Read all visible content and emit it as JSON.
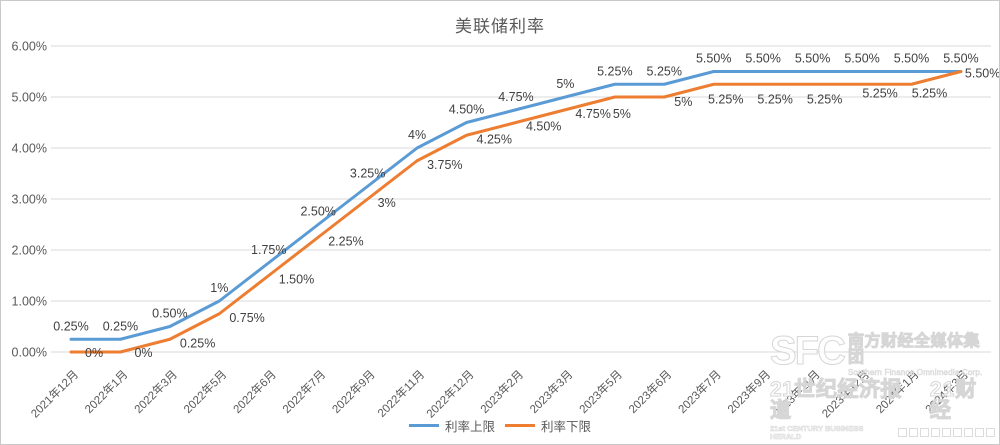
{
  "chart_data": {
    "type": "line",
    "title": "美联储利率",
    "categories": [
      "2021年12月",
      "2022年1月",
      "2022年3月",
      "2022年5月",
      "2022年6月",
      "2022年7月",
      "2022年9月",
      "2022年11月",
      "2022年12月",
      "2023年2月",
      "2023年3月",
      "2023年5月",
      "2023年6月",
      "2023年7月",
      "2023年9月",
      "2023年11月",
      "2023年12月",
      "2024年1月",
      "2024年3月"
    ],
    "series": [
      {
        "name": "利率上限",
        "color": "#5b9bd5",
        "values": [
          0.25,
          0.25,
          0.5,
          1,
          1.75,
          2.5,
          3.25,
          4,
          4.5,
          4.75,
          5,
          5.25,
          5.25,
          5.5,
          5.5,
          5.5,
          5.5,
          5.5,
          5.5
        ],
        "labels": [
          "0.25%",
          "0.25%",
          "0.50%",
          "1%",
          "1.75%",
          "2.50%",
          "3.25%",
          "4%",
          "4.50%",
          "4.75%",
          "5%",
          "5.25%",
          "5.25%",
          "5.50%",
          "5.50%",
          "5.50%",
          "5.50%",
          "5.50%",
          "5.50%"
        ]
      },
      {
        "name": "利率下限",
        "color": "#ed7d31",
        "values": [
          0,
          0,
          0.25,
          0.75,
          1.5,
          2.25,
          3,
          3.75,
          4.25,
          4.5,
          4.75,
          5,
          5,
          5.25,
          5.25,
          5.25,
          5.25,
          5.25,
          5.5
        ],
        "labels": [
          "0%",
          "0%",
          "0.25%",
          "0.75%",
          "1.50%",
          "2.25%",
          "3%",
          "3.75%",
          "4.25%",
          "4.50%",
          "4.75%",
          "5%",
          "5%",
          "5.25%",
          "5.25%",
          "5.25%",
          "5.25%",
          "5.25%",
          "5.50%"
        ]
      }
    ],
    "y_ticks": [
      "6.00%",
      "5.00%",
      "4.00%",
      "3.00%",
      "2.00%",
      "1.00%",
      "0.00%"
    ],
    "ylim": [
      0,
      6
    ],
    "grid": true,
    "legend_position": "bottom",
    "colors": {
      "grid": "#d9d9d9",
      "axis_text": "#595959",
      "data_label_text": "#404040"
    }
  },
  "watermark": {
    "logo": "SFC",
    "company_cn": "南方财经全媒体集团",
    "company_en": "Southern Finance Omnimedia Corp.",
    "brand1": "21世纪经济报道",
    "brand1_en": "21st CENTURY BUSINESS HERALD",
    "brand2": "21财经"
  }
}
